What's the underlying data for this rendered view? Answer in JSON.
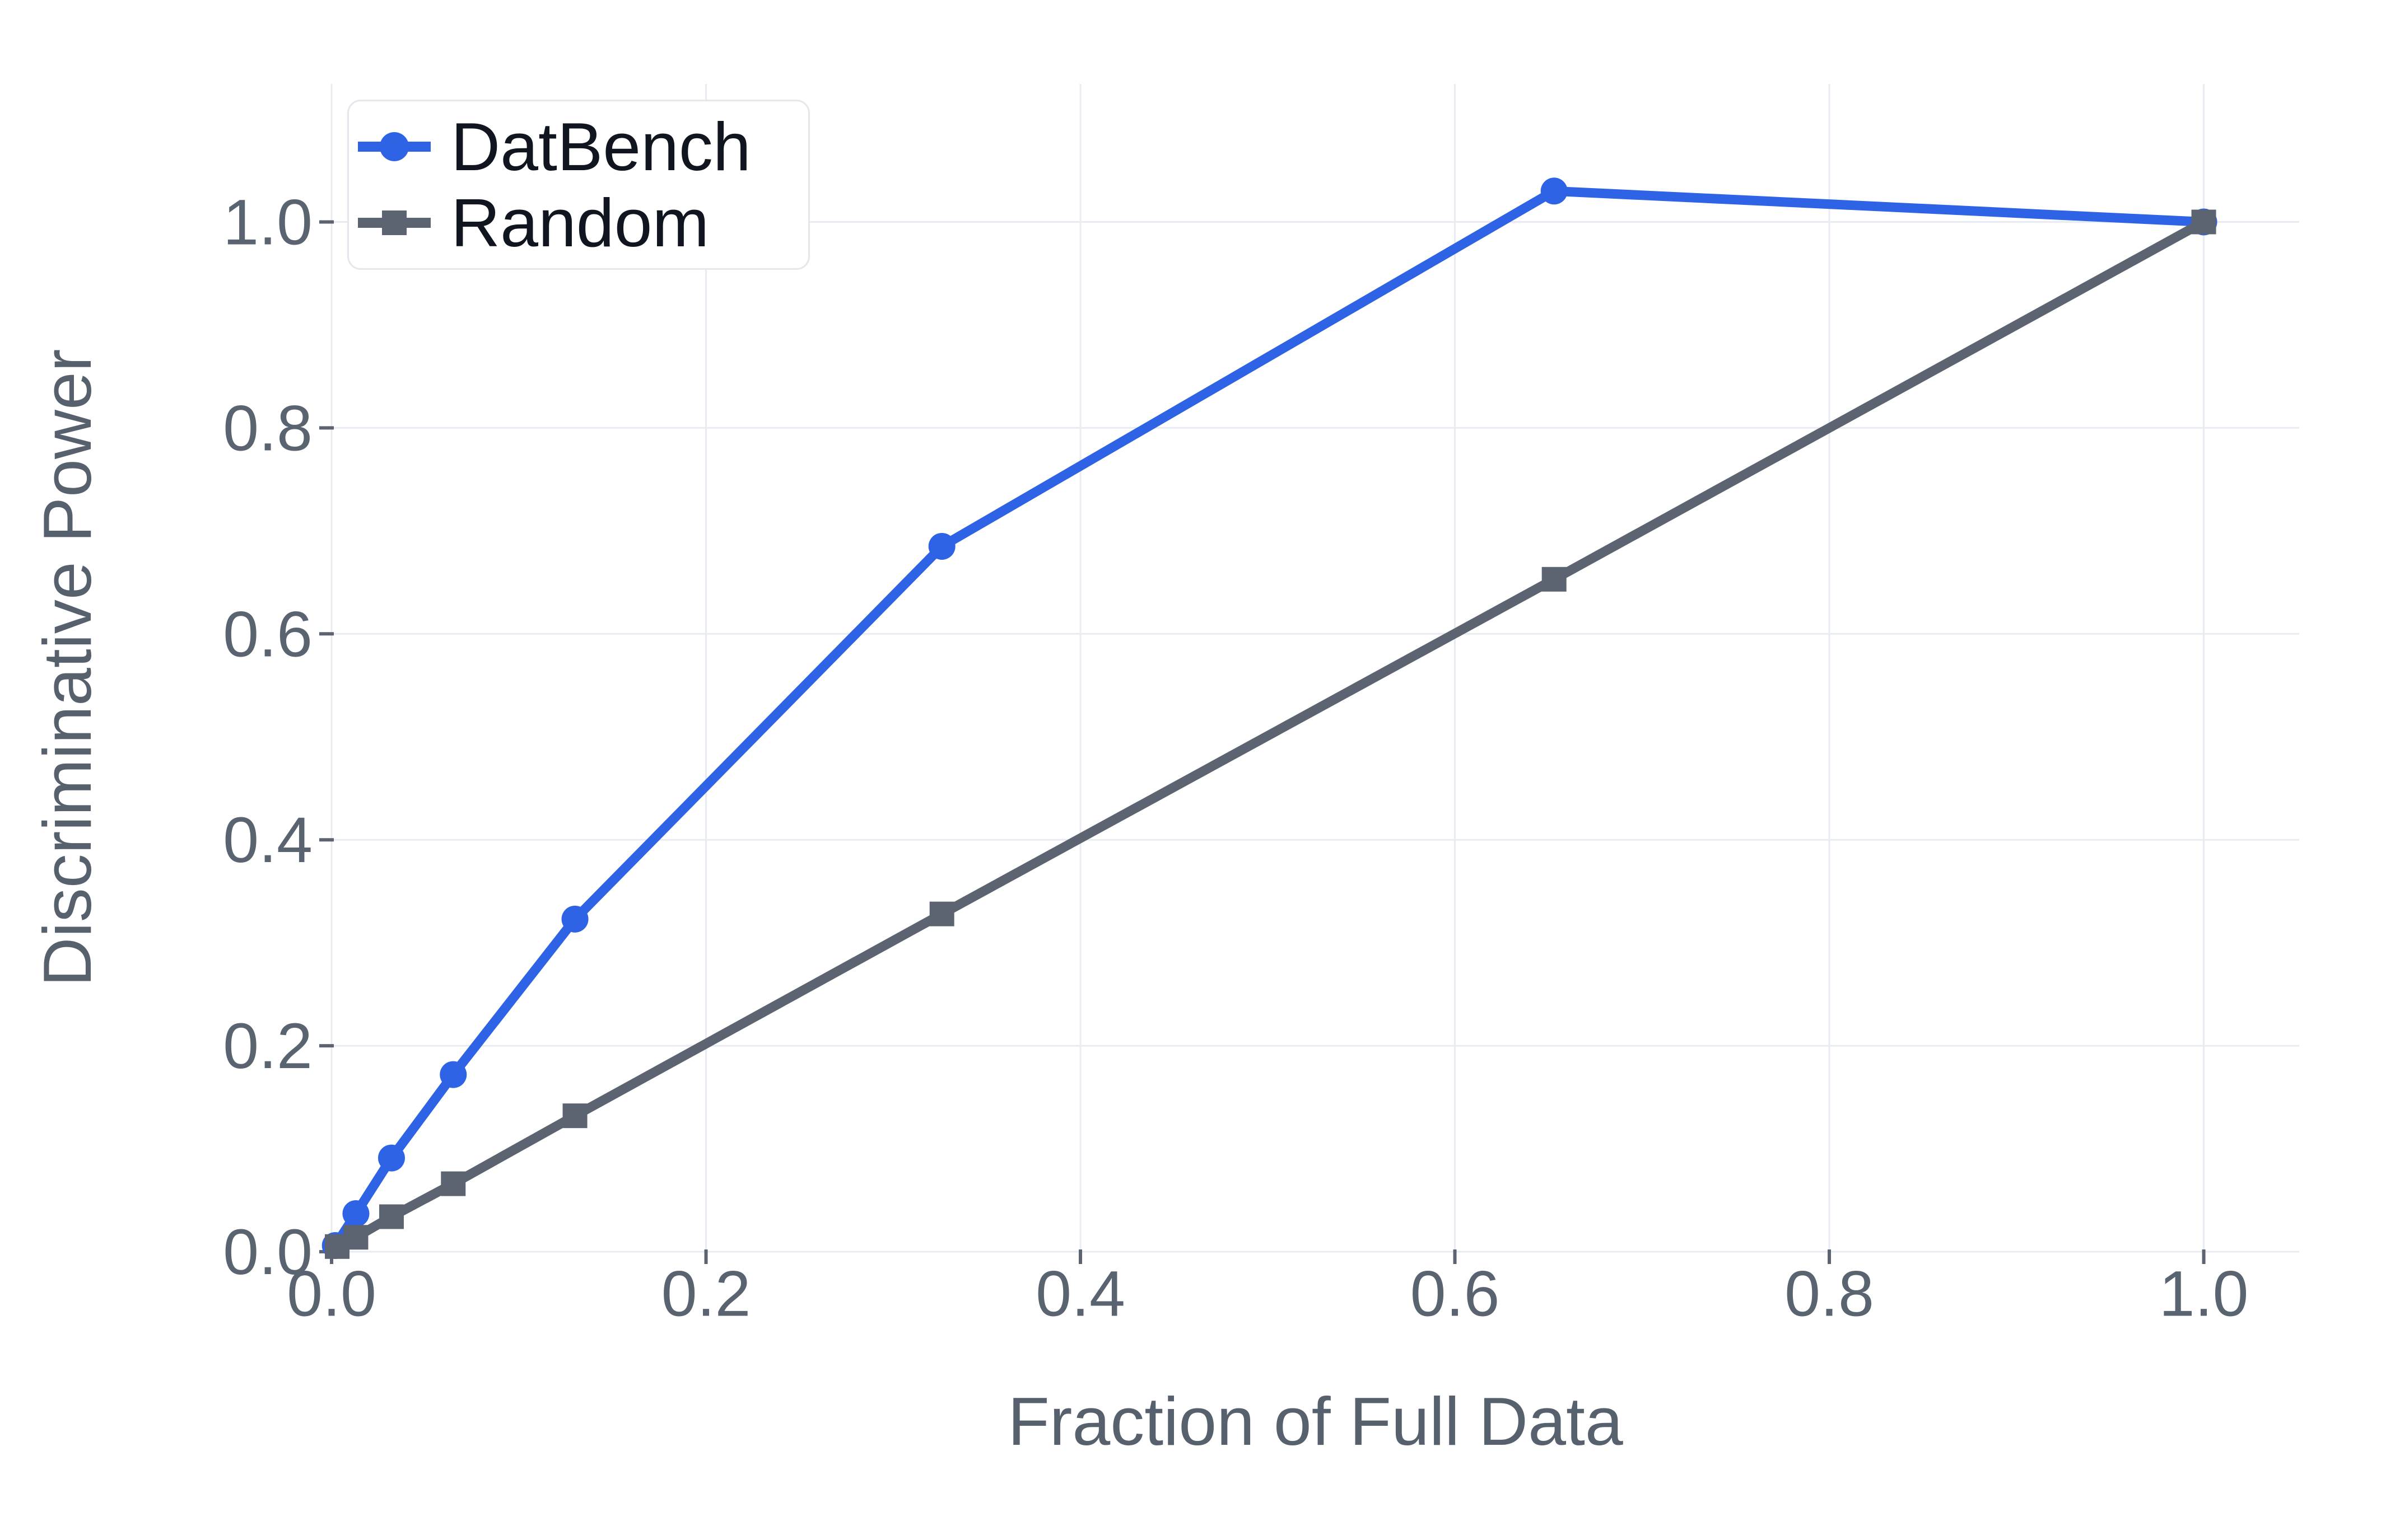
{
  "chart_data": {
    "type": "line",
    "title": "",
    "xlabel": "Fraction of Full Data",
    "ylabel": "Discriminative Power",
    "xlim": [
      0,
      1.051
    ],
    "ylim": [
      0,
      1.134
    ],
    "grid": true,
    "legend_position": "upper-left",
    "x_ticks": {
      "values": [
        0,
        0.2,
        0.4,
        0.6,
        0.8,
        1.0
      ],
      "labels": [
        "0.0",
        "0.2",
        "0.4",
        "0.6",
        "0.8",
        "1.0"
      ]
    },
    "y_ticks": {
      "values": [
        0,
        0.2,
        0.4,
        0.6,
        0.8,
        1.0
      ],
      "labels": [
        "0.0",
        "0.2",
        "0.4",
        "0.6",
        "0.8",
        "1.0"
      ]
    },
    "series": [
      {
        "name": "DatBench",
        "color": "#2e63e6",
        "marker": "circle",
        "x": [
          0.002,
          0.013,
          0.032,
          0.065,
          0.13,
          0.326,
          0.653,
          1.0
        ],
        "y": [
          0.006,
          0.037,
          0.091,
          0.172,
          0.323,
          0.685,
          1.03,
          1.0
        ]
      },
      {
        "name": "Random",
        "color": "#5b6470",
        "marker": "square",
        "x": [
          0.003,
          0.013,
          0.032,
          0.065,
          0.13,
          0.326,
          0.653,
          1.0
        ],
        "y": [
          0.005,
          0.014,
          0.034,
          0.066,
          0.132,
          0.328,
          0.653,
          1.0
        ]
      }
    ]
  },
  "style": {
    "grid_color": "#e8ebf1",
    "tick_color": "#5b6470",
    "tick_label_color": "#5a6470",
    "axis_title_color": "#57616d",
    "legend_text_color": "#10151f",
    "legend_border_color": "#e4e7ec",
    "background": "#ffffff"
  }
}
